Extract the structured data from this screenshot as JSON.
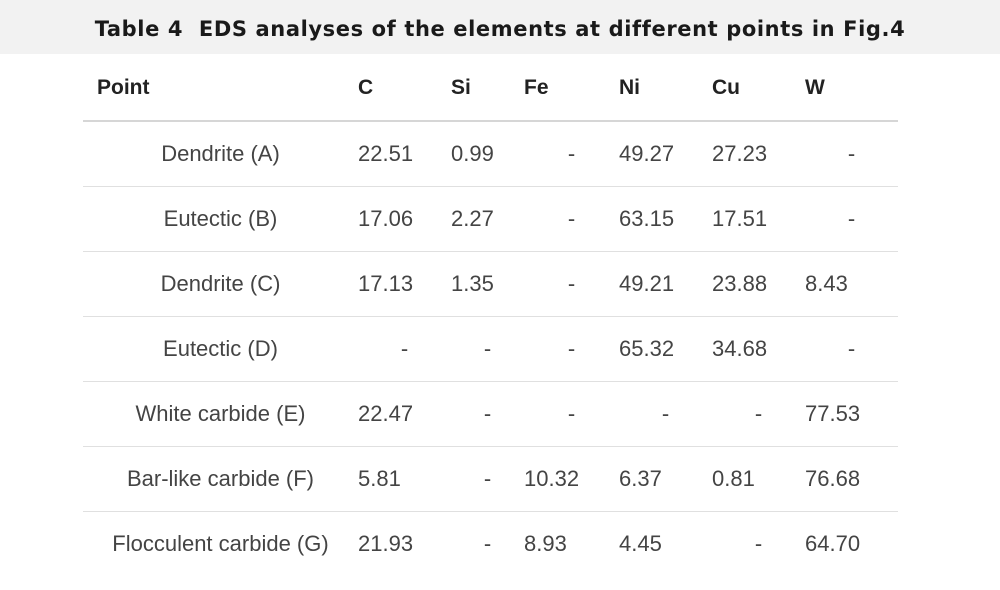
{
  "caption": "Table 4  EDS analyses of the elements at different points in Fig.4",
  "columns": [
    "Point",
    "C",
    "Si",
    "Fe",
    "Ni",
    "Cu",
    "W"
  ],
  "rows": [
    [
      "Dendrite (A)",
      "22.51",
      "0.99",
      "-",
      "49.27",
      "27.23",
      "-"
    ],
    [
      "Eutectic (B)",
      "17.06",
      "2.27",
      "-",
      "63.15",
      "17.51",
      "-"
    ],
    [
      "Dendrite (C)",
      "17.13",
      "1.35",
      "-",
      "49.21",
      "23.88",
      "8.43"
    ],
    [
      "Eutectic (D)",
      "-",
      "-",
      "-",
      "65.32",
      "34.68",
      "-"
    ],
    [
      "White carbide (E)",
      "22.47",
      "-",
      "-",
      "-",
      "-",
      "77.53"
    ],
    [
      "Bar-like carbide (F)",
      "5.81",
      "-",
      "10.32",
      "6.37",
      "0.81",
      "76.68"
    ],
    [
      "Flocculent carbide (G)",
      "21.93",
      "-",
      "8.93",
      "4.45",
      "-",
      "64.70"
    ]
  ]
}
